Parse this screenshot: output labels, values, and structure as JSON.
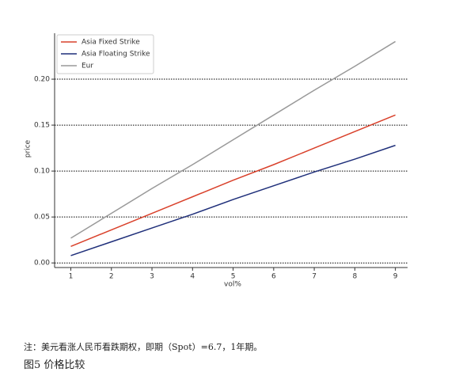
{
  "chart_data": {
    "type": "line",
    "xlabel": "vol%",
    "ylabel": "price",
    "x": [
      1,
      2,
      3,
      4,
      5,
      6,
      7,
      8,
      9
    ],
    "series": [
      {
        "name": "Asia Fixed Strike",
        "color": "#d9412b",
        "values": [
          0.018,
          0.036,
          0.054,
          0.072,
          0.09,
          0.107,
          0.125,
          0.143,
          0.161
        ]
      },
      {
        "name": "Asia Floating Strike",
        "color": "#1f2f7a",
        "values": [
          0.008,
          0.023,
          0.038,
          0.053,
          0.069,
          0.084,
          0.099,
          0.113,
          0.128
        ]
      },
      {
        "name": "Eur",
        "color": "#999999",
        "values": [
          0.027,
          0.054,
          0.081,
          0.107,
          0.134,
          0.161,
          0.188,
          0.214,
          0.241
        ]
      }
    ],
    "xlim": [
      0.6,
      9.3
    ],
    "xticks": [
      1,
      2,
      3,
      4,
      5,
      6,
      7,
      8,
      9
    ],
    "ylim": [
      -0.005,
      0.25
    ],
    "yticks": [
      {
        "value": 0,
        "label": "0.00"
      },
      {
        "value": 0.05,
        "label": "0.05"
      },
      {
        "value": 0.1,
        "label": "0.10"
      },
      {
        "value": 0.15,
        "label": "0.15"
      },
      {
        "value": 0.2,
        "label": "0.20"
      }
    ],
    "grid": true,
    "legend": "upper left",
    "note": "注：美元看涨人民币看跌期权，即期（Spot）=6.7，1年期。",
    "caption": "图5 价格比较"
  }
}
